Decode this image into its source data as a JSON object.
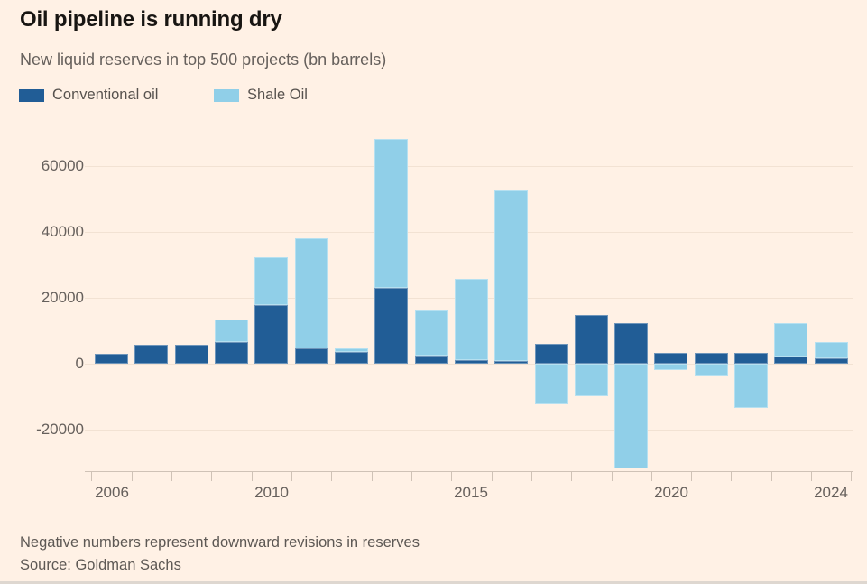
{
  "header": {
    "title": "Oil pipeline is running dry",
    "subtitle": "New liquid reserves in top 500 projects (bn barrels)"
  },
  "legend": {
    "items": [
      {
        "label": "Conventional oil",
        "color": "#215D96"
      },
      {
        "label": "Shale Oil",
        "color": "#90CFE8"
      }
    ]
  },
  "footer": {
    "note": "Negative numbers represent downward revisions in reserves",
    "source": "Source: Goldman Sachs"
  },
  "colors": {
    "background": "#FFF1E5",
    "conventional": "#215D96",
    "shale": "#90CFE8",
    "axis_text": "#66605C",
    "grid_line": "#F2E2D3",
    "axis_line": "#CFC2B6"
  },
  "chart_data": {
    "type": "bar",
    "stacked": true,
    "title": "Oil pipeline is running dry",
    "subtitle": "New liquid reserves in top 500 projects (bn barrels)",
    "note": "Negative numbers represent downward revisions in reserves",
    "source": "Goldman Sachs",
    "grid": true,
    "legend_position": "top-left",
    "categories": [
      2006,
      2007,
      2008,
      2009,
      2010,
      2011,
      2012,
      2013,
      2014,
      2015,
      2016,
      2017,
      2018,
      2019,
      2020,
      2021,
      2022,
      2023,
      2024
    ],
    "series": [
      {
        "name": "Conventional oil",
        "color": "#215D96",
        "values": [
          3000,
          5800,
          5700,
          6600,
          17900,
          4700,
          3600,
          23000,
          2500,
          1100,
          700,
          6000,
          14700,
          12300,
          3400,
          3400,
          3400,
          2100,
          1700
        ]
      },
      {
        "name": "Shale Oil",
        "color": "#90CFE8",
        "values": [
          0,
          0,
          0,
          6800,
          14500,
          33300,
          1100,
          45300,
          13900,
          24600,
          51800,
          -12200,
          -9800,
          -31800,
          -1900,
          -3800,
          -13500,
          10200,
          4900
        ]
      }
    ],
    "ylim": [
      -32600,
      69300
    ],
    "y_ticks": [
      {
        "value": 60000,
        "label": "60000"
      },
      {
        "value": 40000,
        "label": "40000"
      },
      {
        "value": 20000,
        "label": "20000"
      },
      {
        "value": 0,
        "label": "0"
      },
      {
        "value": -20000,
        "label": "-20000"
      }
    ],
    "x_tick_labels": [
      {
        "year": 2006,
        "label": "2006"
      },
      {
        "year": 2010,
        "label": "2010"
      },
      {
        "year": 2015,
        "label": "2015"
      },
      {
        "year": 2020,
        "label": "2020"
      },
      {
        "year": 2024,
        "label": "2024"
      }
    ]
  }
}
